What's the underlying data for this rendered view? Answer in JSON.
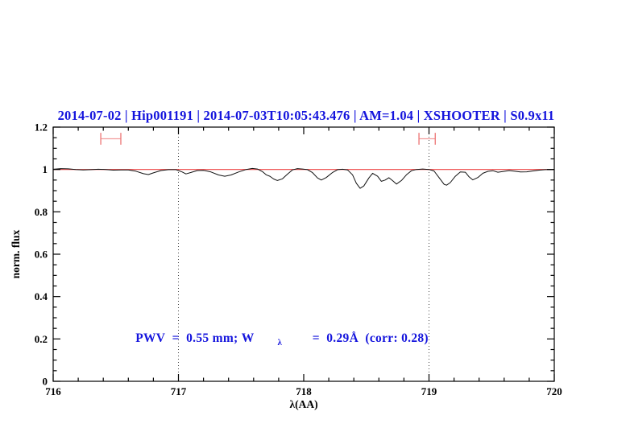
{
  "window": {
    "background": "#ffffff"
  },
  "colors": {
    "header_blue": "#1414dd",
    "annotation_blue": "#1414dd",
    "spectrum_black": "#111111",
    "model_red": "#ee4444",
    "marker_pink": "#ee7d7d",
    "gridline_gray": "#444444",
    "axis_black": "#000000"
  },
  "chart_data": {
    "type": "line",
    "title": "2014-07-02 | Hip001191 | 2014-07-03T10:05:43.476 | AM=1.04 | XSHOOTER | S0.9x11",
    "xlabel": "λ(AA)",
    "ylabel": "norm. flux",
    "xlim": [
      716,
      720
    ],
    "ylim": [
      0,
      1.2
    ],
    "grid": "off",
    "legend": "none",
    "xticks": [
      {
        "v": 716,
        "label": "716"
      },
      {
        "v": 717,
        "label": "717"
      },
      {
        "v": 718,
        "label": "718"
      },
      {
        "v": 719,
        "label": "719"
      },
      {
        "v": 720,
        "label": "720"
      }
    ],
    "yticks": [
      {
        "v": 0,
        "label": "0"
      },
      {
        "v": 0.2,
        "label": "0.2"
      },
      {
        "v": 0.4,
        "label": "0.4"
      },
      {
        "v": 0.6,
        "label": "0.6"
      },
      {
        "v": 0.8,
        "label": "0.8"
      },
      {
        "v": 1,
        "label": "1"
      },
      {
        "v": 1.2,
        "label": "1.2"
      }
    ],
    "x_minor_step": 0.2,
    "y_minor_step": 0.05,
    "dotted_gridlines_x": [
      717,
      719
    ],
    "series": [
      {
        "name": "observed-spectrum",
        "color": "#111111",
        "points": [
          [
            716.0,
            1.001
          ],
          [
            716.06,
            1.004
          ],
          [
            716.12,
            1.003
          ],
          [
            716.18,
            1.0
          ],
          [
            716.24,
            0.998
          ],
          [
            716.3,
            0.999
          ],
          [
            716.36,
            1.001
          ],
          [
            716.42,
            1.0
          ],
          [
            716.48,
            0.997
          ],
          [
            716.54,
            0.998
          ],
          [
            716.6,
            0.998
          ],
          [
            716.66,
            0.992
          ],
          [
            716.72,
            0.98
          ],
          [
            716.76,
            0.976
          ],
          [
            716.8,
            0.984
          ],
          [
            716.86,
            0.995
          ],
          [
            716.92,
            0.999
          ],
          [
            716.98,
            0.999
          ],
          [
            717.03,
            0.988
          ],
          [
            717.06,
            0.979
          ],
          [
            717.1,
            0.986
          ],
          [
            717.15,
            0.995
          ],
          [
            717.2,
            0.996
          ],
          [
            717.26,
            0.988
          ],
          [
            717.32,
            0.974
          ],
          [
            717.37,
            0.968
          ],
          [
            717.42,
            0.974
          ],
          [
            717.48,
            0.988
          ],
          [
            717.54,
            1.0
          ],
          [
            717.59,
            1.005
          ],
          [
            717.63,
            1.002
          ],
          [
            717.67,
            0.99
          ],
          [
            717.7,
            0.975
          ],
          [
            717.73,
            0.968
          ],
          [
            717.76,
            0.955
          ],
          [
            717.79,
            0.948
          ],
          [
            717.83,
            0.956
          ],
          [
            717.87,
            0.978
          ],
          [
            717.91,
            0.998
          ],
          [
            717.95,
            1.004
          ],
          [
            717.99,
            1.002
          ],
          [
            718.03,
            0.999
          ],
          [
            718.07,
            0.985
          ],
          [
            718.11,
            0.96
          ],
          [
            718.14,
            0.95
          ],
          [
            718.18,
            0.962
          ],
          [
            718.23,
            0.986
          ],
          [
            718.27,
            0.999
          ],
          [
            718.31,
            1.001
          ],
          [
            718.35,
            0.998
          ],
          [
            718.39,
            0.975
          ],
          [
            718.42,
            0.935
          ],
          [
            718.45,
            0.911
          ],
          [
            718.48,
            0.922
          ],
          [
            718.52,
            0.96
          ],
          [
            718.55,
            0.982
          ],
          [
            718.59,
            0.968
          ],
          [
            718.62,
            0.944
          ],
          [
            718.65,
            0.95
          ],
          [
            718.68,
            0.961
          ],
          [
            718.71,
            0.947
          ],
          [
            718.74,
            0.931
          ],
          [
            718.78,
            0.948
          ],
          [
            718.82,
            0.975
          ],
          [
            718.86,
            0.994
          ],
          [
            718.9,
            1.0
          ],
          [
            718.95,
            1.002
          ],
          [
            719.0,
            1.0
          ],
          [
            719.04,
            0.993
          ],
          [
            719.08,
            0.962
          ],
          [
            719.12,
            0.93
          ],
          [
            719.14,
            0.926
          ],
          [
            719.17,
            0.938
          ],
          [
            719.21,
            0.968
          ],
          [
            719.25,
            0.988
          ],
          [
            719.29,
            0.987
          ],
          [
            719.32,
            0.965
          ],
          [
            719.35,
            0.951
          ],
          [
            719.39,
            0.962
          ],
          [
            719.43,
            0.982
          ],
          [
            719.47,
            0.991
          ],
          [
            719.51,
            0.994
          ],
          [
            719.55,
            0.987
          ],
          [
            719.6,
            0.991
          ],
          [
            719.64,
            0.995
          ],
          [
            719.68,
            0.992
          ],
          [
            719.73,
            0.988
          ],
          [
            719.78,
            0.989
          ],
          [
            719.83,
            0.993
          ],
          [
            719.88,
            0.997
          ],
          [
            719.93,
            0.999
          ],
          [
            720.0,
            0.999
          ]
        ]
      },
      {
        "name": "telluric-model-continuum",
        "color": "#ee4444",
        "points": [
          [
            716.0,
            1.0
          ],
          [
            720.0,
            1.0
          ]
        ]
      }
    ],
    "band_markers": [
      {
        "x1": 716.38,
        "x2": 716.54,
        "y": 1.145,
        "cap_half": 0.028,
        "color": "#ee7d7d"
      },
      {
        "x1": 718.92,
        "x2": 719.05,
        "y": 1.145,
        "cap_half": 0.028,
        "color": "#ee7d7d"
      }
    ],
    "annotation": {
      "pre": "PWV  =  0.55 mm; W",
      "sub": "λ",
      "post": "  =  0.29Å  (corr: 0.28)",
      "color": "#1414dd"
    }
  }
}
